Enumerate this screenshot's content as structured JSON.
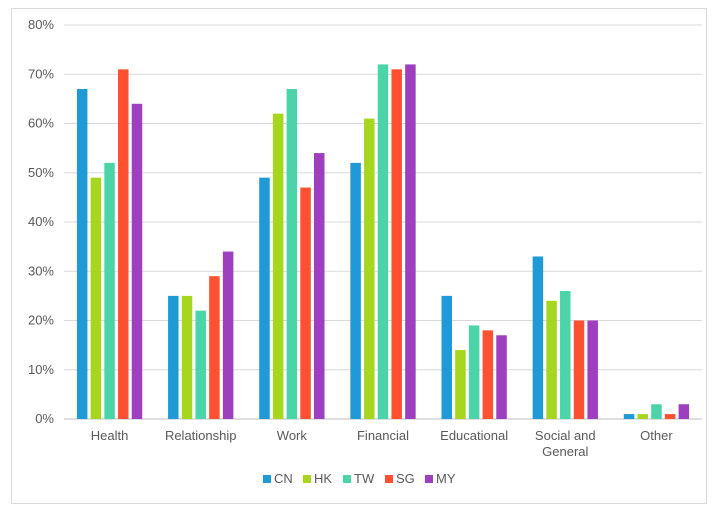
{
  "chart_data": {
    "type": "bar",
    "categories": [
      "Health",
      "Relationship",
      "Work",
      "Financial",
      "Educational",
      [
        "Social and",
        "General"
      ],
      "Other"
    ],
    "series": [
      {
        "name": "CN",
        "color": "#1f9ad6",
        "values": [
          67,
          25,
          49,
          52,
          25,
          33,
          1
        ]
      },
      {
        "name": "HK",
        "color": "#a6d61e",
        "values": [
          49,
          25,
          62,
          61,
          14,
          24,
          1
        ]
      },
      {
        "name": "TW",
        "color": "#4cd4a9",
        "values": [
          52,
          22,
          67,
          72,
          19,
          26,
          3
        ]
      },
      {
        "name": "SG",
        "color": "#ff5131",
        "values": [
          71,
          29,
          47,
          71,
          18,
          20,
          1
        ]
      },
      {
        "name": "MY",
        "color": "#9e3fbf",
        "values": [
          64,
          34,
          54,
          72,
          17,
          20,
          3
        ]
      }
    ],
    "ylim": [
      0,
      80
    ],
    "yticks": [
      "0%",
      "10%",
      "20%",
      "30%",
      "40%",
      "50%",
      "60%",
      "70%",
      "80%"
    ],
    "ytick_values": [
      0,
      10,
      20,
      30,
      40,
      50,
      60,
      70,
      80
    ],
    "grid": true,
    "legend_position": "bottom",
    "title": "",
    "xlabel": "",
    "ylabel": ""
  }
}
